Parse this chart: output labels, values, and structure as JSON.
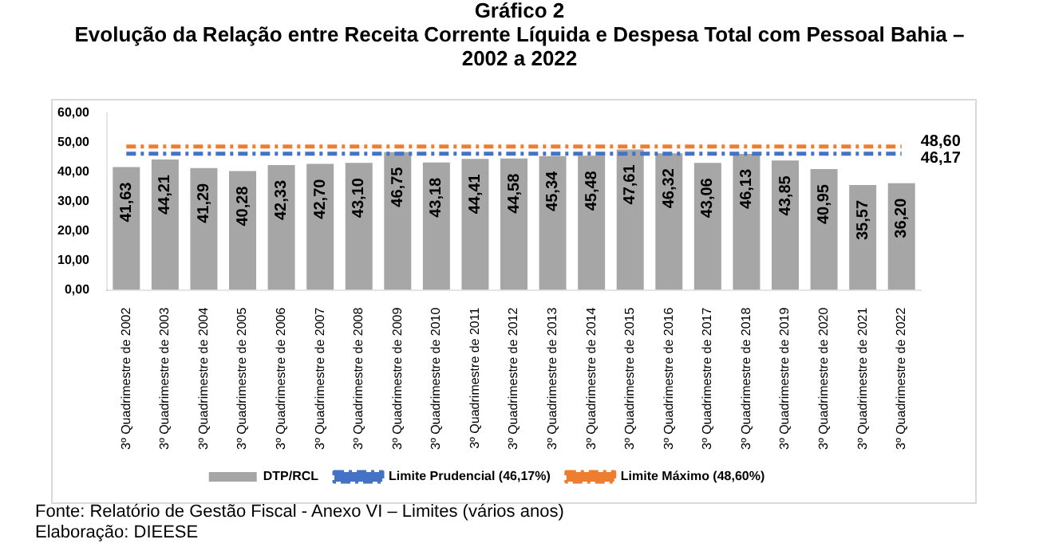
{
  "chart_data": {
    "type": "bar",
    "title": "Gráfico 2",
    "subtitle": "Evolução da Relação entre Receita Corrente Líquida e Despesa Total com Pessoal Bahia – 2002 a 2022",
    "categories": [
      "3º Quadrimestre de 2002",
      "3º Quadrimestre de 2003",
      "3º Quadrimestre de 2004",
      "3º Quadrimestre de 2005",
      "3º Quadrimestre de 2006",
      "3º Quadrimestre de 2007",
      "3º Quadrimestre de 2008",
      "3º Quadrimestre de 2009",
      "3º Quadrimestre de 2010",
      "3º Quadrimestre de 2011",
      "3º Quadrimestre de 2012",
      "3º Quadrimestre de 2013",
      "3º Quadrimestre de 2014",
      "3º Quadrimestre de 2015",
      "3º Quadrimestre de 2016",
      "3º Quadrimestre de 2017",
      "3º Quadrimestre de 2018",
      "3º Quadrimestre de 2019",
      "3º Quadrimestre de 2020",
      "3º Quadrimestre de 2021",
      "3º Quadrimestre de 2022"
    ],
    "series": [
      {
        "name": "DTP/RCL",
        "color": "#a6a6a6",
        "values": [
          41.63,
          44.21,
          41.29,
          40.28,
          42.33,
          42.7,
          43.1,
          46.75,
          43.18,
          44.41,
          44.58,
          45.34,
          45.48,
          47.61,
          46.32,
          43.06,
          46.13,
          43.85,
          40.95,
          35.57,
          36.2
        ],
        "value_labels": [
          "41,63",
          "44,21",
          "41,29",
          "40,28",
          "42,33",
          "42,70",
          "43,10",
          "46,75",
          "43,18",
          "44,41",
          "44,58",
          "45,34",
          "45,48",
          "47,61",
          "46,32",
          "43,06",
          "46,13",
          "43,85",
          "40,95",
          "35,57",
          "36,20"
        ]
      },
      {
        "name": "Limite Prudencial (46,17%)",
        "type": "line",
        "color": "#4472c4",
        "values": [
          46.17,
          46.17,
          46.17,
          46.17,
          46.17,
          46.17,
          46.17,
          46.17,
          46.17,
          46.17,
          46.17,
          46.17,
          46.17,
          46.17,
          46.17,
          46.17,
          46.17,
          46.17,
          46.17,
          46.17,
          46.17
        ],
        "value_labels": [
          null,
          null,
          null,
          null,
          null,
          null,
          null,
          null,
          null,
          null,
          null,
          null,
          null,
          null,
          null,
          null,
          null,
          null,
          null,
          null,
          "46,17"
        ]
      },
      {
        "name": "Limite Máximo (48,60%)",
        "type": "line",
        "color": "#ed7d31",
        "values": [
          48.6,
          48.6,
          48.6,
          48.6,
          48.6,
          48.6,
          48.6,
          48.6,
          48.6,
          48.6,
          48.6,
          48.6,
          48.6,
          48.6,
          48.6,
          48.6,
          48.6,
          48.6,
          48.6,
          48.6,
          48.6
        ],
        "value_labels": [
          null,
          null,
          null,
          null,
          null,
          null,
          null,
          null,
          null,
          null,
          null,
          null,
          null,
          null,
          null,
          null,
          null,
          null,
          null,
          null,
          "48,60"
        ]
      }
    ],
    "ylim": [
      0,
      60
    ],
    "yticks": [
      {
        "value": 0,
        "label": "0,00"
      },
      {
        "value": 10,
        "label": "10,00"
      },
      {
        "value": 20,
        "label": "20,00"
      },
      {
        "value": 30,
        "label": "30,00"
      },
      {
        "value": 40,
        "label": "40,00"
      },
      {
        "value": 50,
        "label": "50,00"
      },
      {
        "value": 60,
        "label": "60,00"
      }
    ],
    "grid": false,
    "legend": "bottom",
    "marker": "none",
    "line_style": "dashed",
    "annotations": [
      "Fonte: Relatório de Gestão Fiscal - Anexo VI – Limites (vários anos)",
      "Elaboração: DIEESE"
    ]
  }
}
